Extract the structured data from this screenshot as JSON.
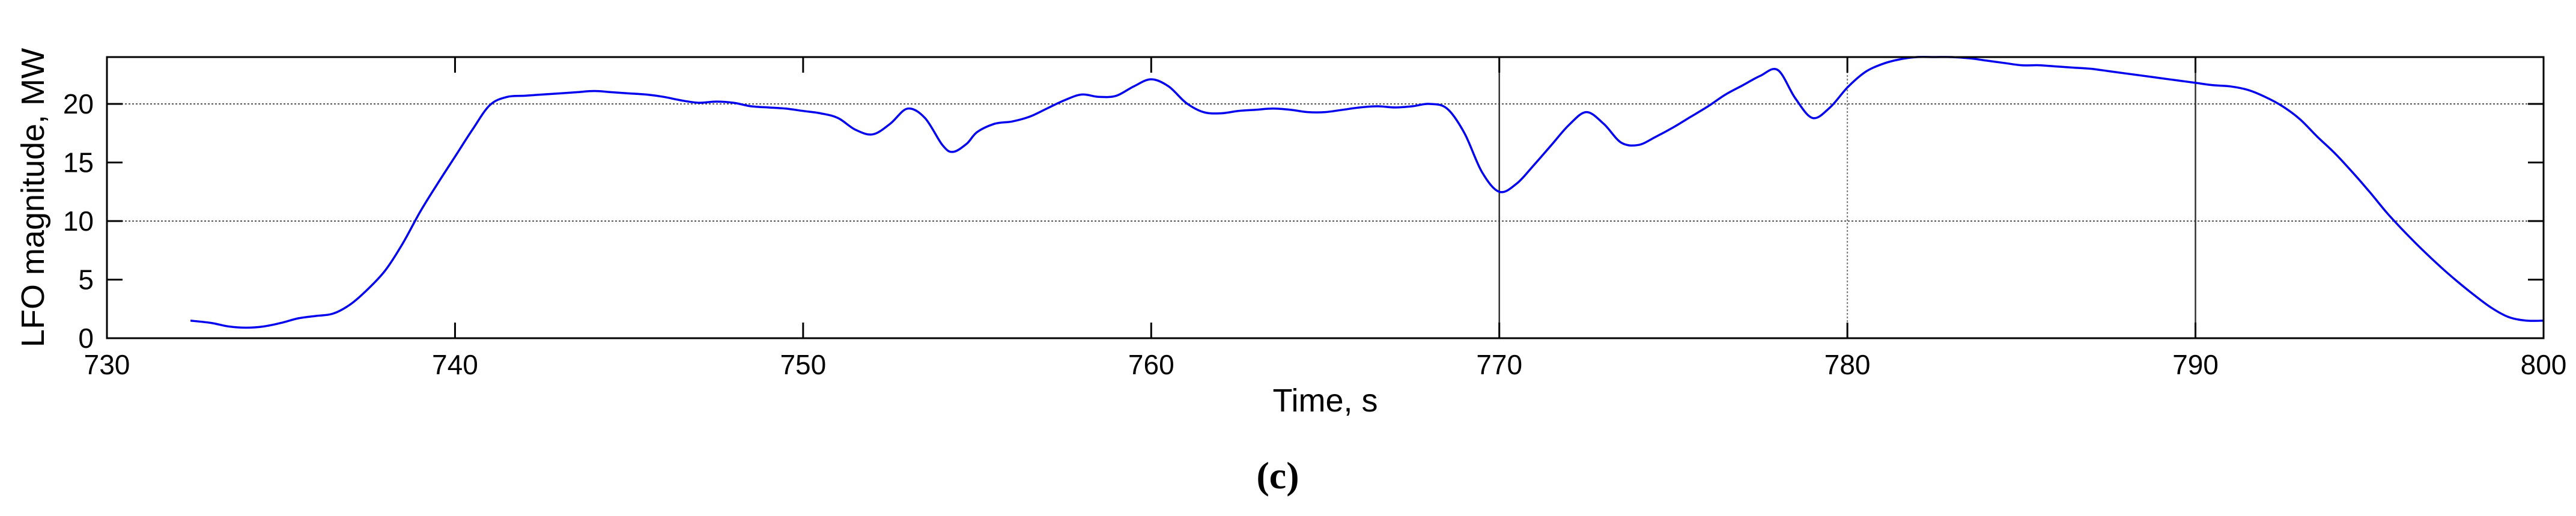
{
  "chart_data": {
    "type": "line",
    "xlabel": "Time, s",
    "ylabel": "LFO magnitude, MW",
    "panel_label": "(c)",
    "xlim": [
      730,
      800
    ],
    "ylim": [
      0,
      24
    ],
    "x_ticks": [
      730,
      740,
      750,
      760,
      770,
      780,
      790,
      800
    ],
    "y_ticks": [
      0,
      5,
      10,
      15,
      20
    ],
    "grid": {
      "horizontal": [
        10,
        20
      ],
      "vertical_solid": [
        770,
        790
      ],
      "vertical_dotted": [
        780
      ]
    },
    "line_color": "#0000ee",
    "series": [
      {
        "x": [
          732.4,
          733.0,
          733.5,
          734.0,
          734.5,
          735.0,
          735.5,
          736.0,
          736.5,
          737.0,
          737.5,
          738.0,
          738.5,
          739.0,
          739.5,
          740.0,
          740.5,
          741.0,
          741.5,
          742.0,
          742.5,
          743.0,
          743.5,
          744.0,
          744.5,
          745.0,
          745.5,
          746.0,
          746.5,
          747.0,
          747.5,
          748.0,
          748.5,
          749.0,
          749.5,
          750.0,
          750.5,
          751.0,
          751.5,
          752.0,
          752.5,
          753.0,
          753.5,
          754.0,
          754.3,
          754.7,
          755.0,
          755.5,
          756.0,
          756.5,
          757.0,
          757.5,
          758.0,
          758.5,
          759.0,
          759.5,
          760.0,
          760.5,
          761.0,
          761.5,
          762.0,
          762.5,
          763.0,
          763.5,
          764.0,
          764.5,
          765.0,
          765.5,
          766.0,
          766.5,
          767.0,
          767.5,
          768.0,
          768.5,
          769.0,
          769.5,
          770.0,
          770.5,
          771.0,
          771.5,
          772.0,
          772.5,
          773.0,
          773.5,
          774.0,
          774.5,
          775.0,
          775.5,
          776.0,
          776.5,
          777.0,
          777.5,
          778.0,
          778.5,
          779.0,
          779.5,
          780.0,
          780.5,
          781.0,
          781.5,
          782.0,
          782.5,
          783.0,
          783.5,
          784.0,
          784.5,
          785.0,
          785.5,
          786.0,
          786.5,
          787.0,
          787.5,
          788.0,
          788.5,
          789.0,
          789.5,
          790.0,
          790.5,
          791.0,
          791.5,
          792.0,
          792.5,
          793.0,
          793.5,
          794.0,
          794.5,
          795.0,
          795.5,
          796.0,
          796.5,
          797.0,
          797.5,
          798.0,
          798.5,
          799.0,
          799.5,
          800.0
        ],
        "y": [
          1.5,
          1.3,
          1.0,
          0.9,
          1.0,
          1.3,
          1.7,
          1.9,
          2.1,
          2.9,
          4.2,
          5.8,
          8.1,
          10.8,
          13.2,
          15.5,
          17.8,
          19.9,
          20.6,
          20.7,
          20.8,
          20.9,
          21.0,
          21.1,
          21.0,
          20.9,
          20.8,
          20.6,
          20.3,
          20.1,
          20.2,
          20.1,
          19.8,
          19.7,
          19.6,
          19.4,
          19.2,
          18.8,
          17.8,
          17.4,
          18.3,
          19.6,
          18.8,
          16.5,
          15.9,
          16.6,
          17.6,
          18.3,
          18.5,
          18.9,
          19.6,
          20.3,
          20.8,
          20.6,
          20.7,
          21.5,
          22.1,
          21.5,
          20.1,
          19.3,
          19.2,
          19.4,
          19.5,
          19.6,
          19.5,
          19.3,
          19.3,
          19.5,
          19.7,
          19.8,
          19.7,
          19.8,
          20.0,
          19.6,
          17.5,
          14.2,
          12.5,
          13.2,
          14.8,
          16.5,
          18.2,
          19.3,
          18.3,
          16.7,
          16.5,
          17.2,
          18.0,
          18.9,
          19.8,
          20.8,
          21.6,
          22.4,
          22.9,
          20.5,
          18.8,
          19.7,
          21.4,
          22.7,
          23.4,
          23.8,
          24.0,
          24.0,
          24.0,
          23.9,
          23.7,
          23.5,
          23.3,
          23.3,
          23.2,
          23.1,
          23.0,
          22.8,
          22.6,
          22.4,
          22.2,
          22.0,
          21.8,
          21.6,
          21.5,
          21.2,
          20.6,
          19.8,
          18.7,
          17.2,
          15.8,
          14.2,
          12.5,
          10.7,
          9.1,
          7.6,
          6.2,
          4.9,
          3.7,
          2.6,
          1.8,
          1.5,
          1.5
        ]
      }
    ]
  }
}
